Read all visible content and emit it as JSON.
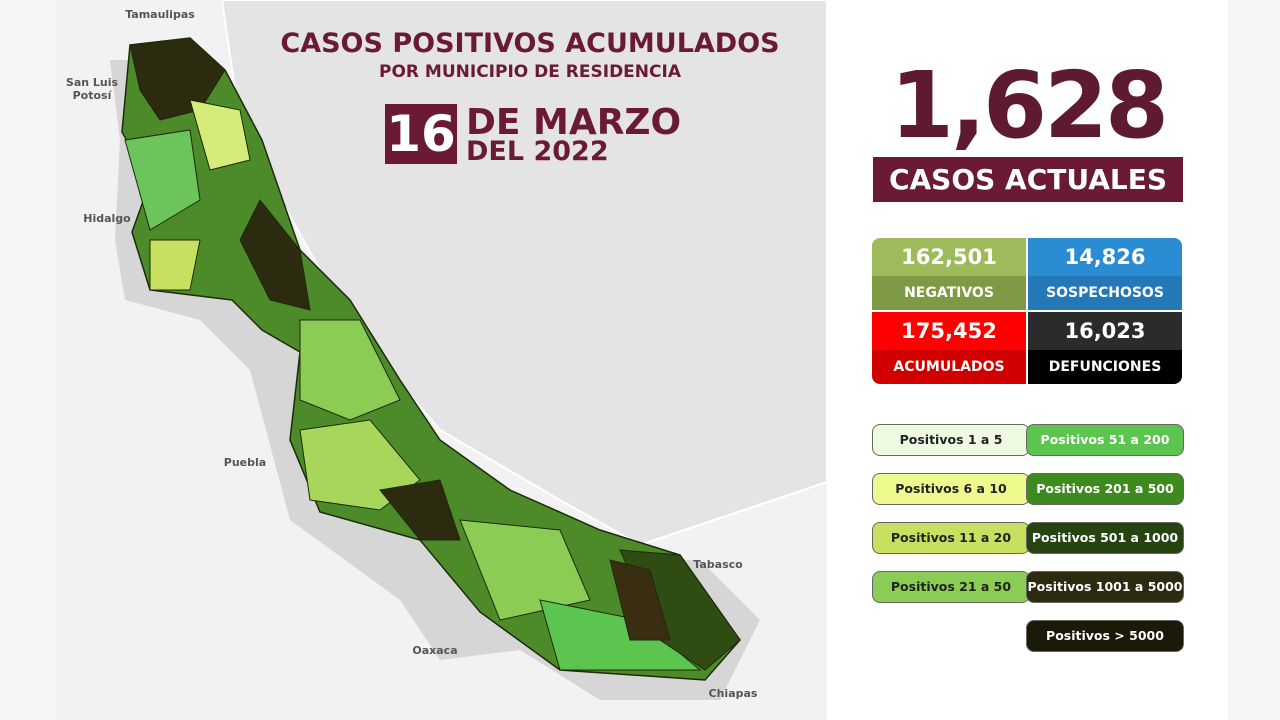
{
  "header": {
    "title": "CASOS POSITIVOS ACUMULADOS",
    "subtitle": "POR MUNICIPIO DE RESIDENCIA",
    "day": "16",
    "month": "DE MARZO",
    "year": "DEL 2022"
  },
  "current": {
    "value": "1,628",
    "label": "CASOS ACTUALES"
  },
  "stats": [
    {
      "value": "162,501",
      "label": "NEGATIVOS",
      "color": "#9dbb5a",
      "label_color": "#7e9a45"
    },
    {
      "value": "14,826",
      "label": "SOSPECHOSOS",
      "color": "#2a8dd4",
      "label_color": "#2478b8"
    },
    {
      "value": "175,452",
      "label": "ACUMULADOS",
      "color": "#ff0000",
      "label_color": "#d10000"
    },
    {
      "value": "16,023",
      "label": "DEFUNCIONES",
      "color": "#2b2b2b",
      "label_color": "#000000"
    }
  ],
  "legend": [
    {
      "label": "Positivos 1 a 5",
      "color": "#eefbe0",
      "text_color": "#222222"
    },
    {
      "label": "Positivos 51 a 200",
      "color": "#5cc54f",
      "text_color": "#ffffff"
    },
    {
      "label": "Positivos 6 a 10",
      "color": "#eefa8e",
      "text_color": "#222222"
    },
    {
      "label": "Positivos 201 a 500",
      "color": "#3f8a1e",
      "text_color": "#ffffff"
    },
    {
      "label": "Positivos 11 a 20",
      "color": "#c7e060",
      "text_color": "#222222"
    },
    {
      "label": "Positivos 501 a 1000",
      "color": "#25440f",
      "text_color": "#ffffff"
    },
    {
      "label": "Positivos 21 a 50",
      "color": "#8bcc55",
      "text_color": "#222222"
    },
    {
      "label": "Positivos 1001 a 5000",
      "color": "#2c2a0f",
      "text_color": "#ffffff"
    },
    {
      "label": "Positivos > 5000",
      "color": "#1b1a08",
      "text_color": "#ffffff"
    }
  ],
  "map_labels": [
    "Tamaulipas",
    "San Luis Potosí",
    "Hidalgo",
    "Puebla",
    "Oaxaca",
    "Tabasco",
    "Chiapas"
  ]
}
